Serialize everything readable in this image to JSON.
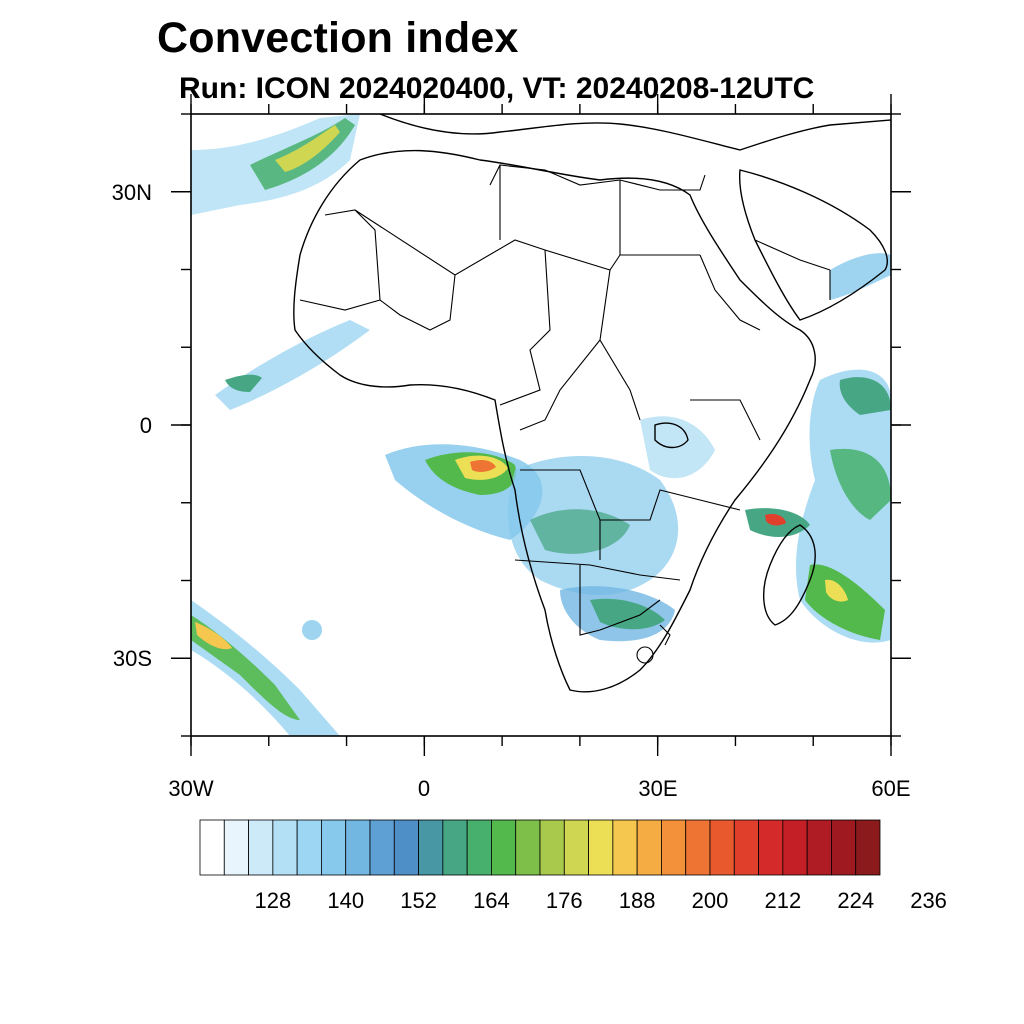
{
  "title": "Convection index",
  "subtitle": "Run: ICON 2024020400,  VT: 20240208-12UTC",
  "map": {
    "lon_range": [
      -30,
      60
    ],
    "lat_range": [
      -40,
      40
    ],
    "y_ticks": [
      {
        "lat": 30,
        "label": "30N"
      },
      {
        "lat": 0,
        "label": "0"
      },
      {
        "lat": -30,
        "label": "30S"
      }
    ],
    "x_ticks": [
      {
        "lon": -30,
        "label": "30W"
      },
      {
        "lon": 0,
        "label": "0"
      },
      {
        "lon": 30,
        "label": "30E"
      },
      {
        "lon": 60,
        "label": "60E"
      }
    ]
  },
  "colorbar": {
    "colors": [
      "#ffffff",
      "#e8f5fc",
      "#cceaf8",
      "#b4e0f5",
      "#9dd6f2",
      "#86c9ec",
      "#72b6e2",
      "#5e9fd4",
      "#4d8fc6",
      "#4897a4",
      "#47a784",
      "#46b06c",
      "#54b94c",
      "#7dbf48",
      "#a9c94c",
      "#cfd652",
      "#ecdf55",
      "#f6c74f",
      "#f5ad43",
      "#f2913a",
      "#ee7433",
      "#e8592d",
      "#e03f2b",
      "#d52a2a",
      "#c41f27",
      "#b01c24",
      "#9e1a20",
      "#8a1a1c"
    ],
    "labels": [
      "128",
      "140",
      "152",
      "164",
      "176",
      "188",
      "200",
      "212",
      "224",
      "236"
    ]
  }
}
